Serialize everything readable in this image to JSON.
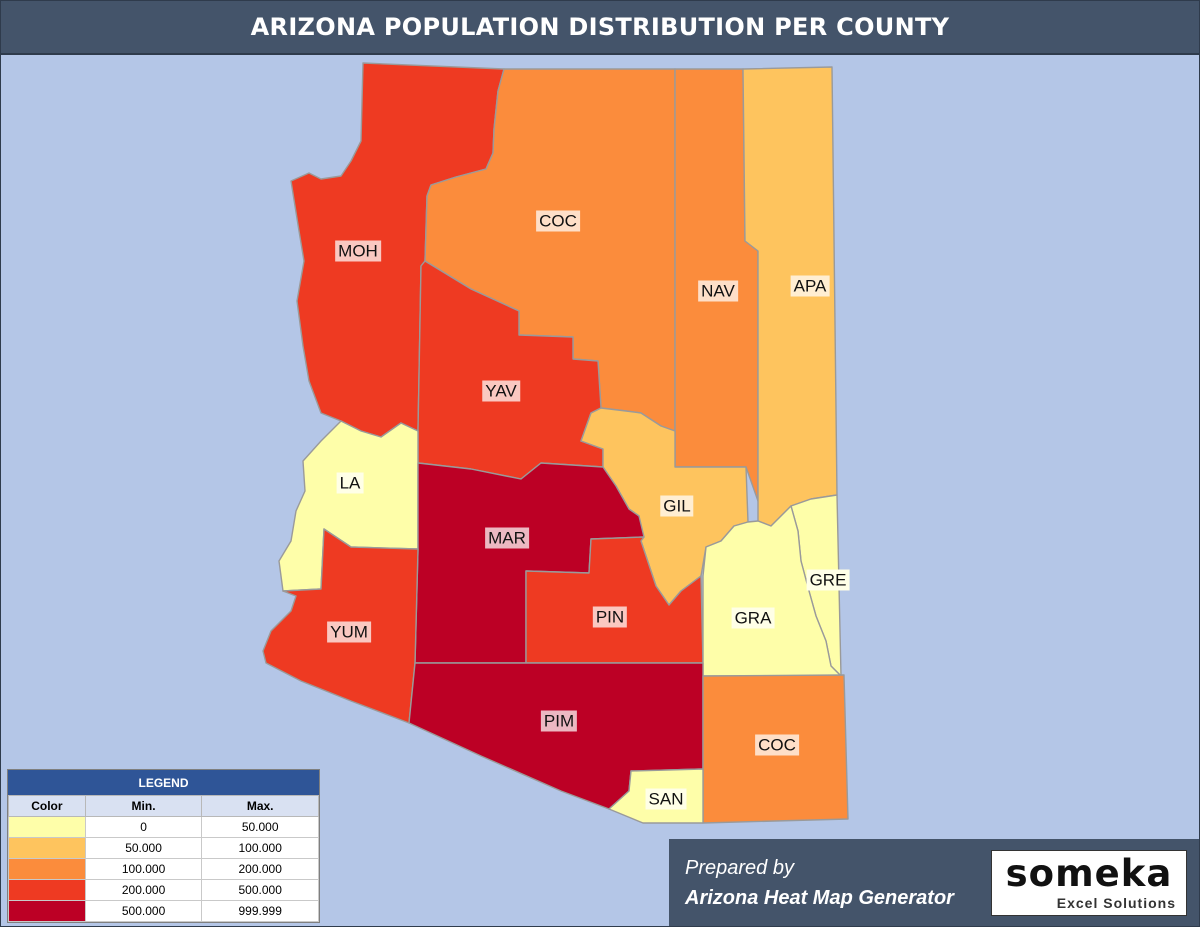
{
  "title": "ARIZONA POPULATION DISTRIBUTION PER COUNTY",
  "counties": [
    {
      "id": "moh",
      "label": "MOH",
      "color": "#ee3a22"
    },
    {
      "id": "coc-north",
      "label": "COC",
      "color": "#fb8c3c"
    },
    {
      "id": "nav",
      "label": "NAV",
      "color": "#fb8c3c"
    },
    {
      "id": "apa",
      "label": "APA",
      "color": "#fec45e"
    },
    {
      "id": "yav",
      "label": "YAV",
      "color": "#ee3a22"
    },
    {
      "id": "la",
      "label": "LA",
      "color": "#fefea9"
    },
    {
      "id": "gil",
      "label": "GIL",
      "color": "#fec45e"
    },
    {
      "id": "mar",
      "label": "MAR",
      "color": "#bc0025"
    },
    {
      "id": "gre",
      "label": "GRE",
      "color": "#fefea9"
    },
    {
      "id": "yum",
      "label": "YUM",
      "color": "#ee3a22"
    },
    {
      "id": "pin",
      "label": "PIN",
      "color": "#ee3a22"
    },
    {
      "id": "gra",
      "label": "GRA",
      "color": "#fefea9"
    },
    {
      "id": "pim",
      "label": "PIM",
      "color": "#bc0025"
    },
    {
      "id": "coc-south",
      "label": "COC",
      "color": "#fb8c3c"
    },
    {
      "id": "san",
      "label": "SAN",
      "color": "#fefea9"
    }
  ],
  "legend": {
    "title": "LEGEND",
    "headers": {
      "color": "Color",
      "min": "Min.",
      "max": "Max."
    },
    "rows": [
      {
        "color": "#fefea9",
        "min": "0",
        "max": "50.000"
      },
      {
        "color": "#fec45e",
        "min": "50.000",
        "max": "100.000"
      },
      {
        "color": "#fb8c3c",
        "min": "100.000",
        "max": "200.000"
      },
      {
        "color": "#ee3a22",
        "min": "200.000",
        "max": "500.000"
      },
      {
        "color": "#bc0025",
        "min": "500.000",
        "max": "999.999"
      }
    ]
  },
  "credit": {
    "line1": "Prepared by",
    "line2": "Arizona Heat Map Generator"
  },
  "logo": {
    "name": "someka",
    "subtitle": "Excel Solutions"
  }
}
